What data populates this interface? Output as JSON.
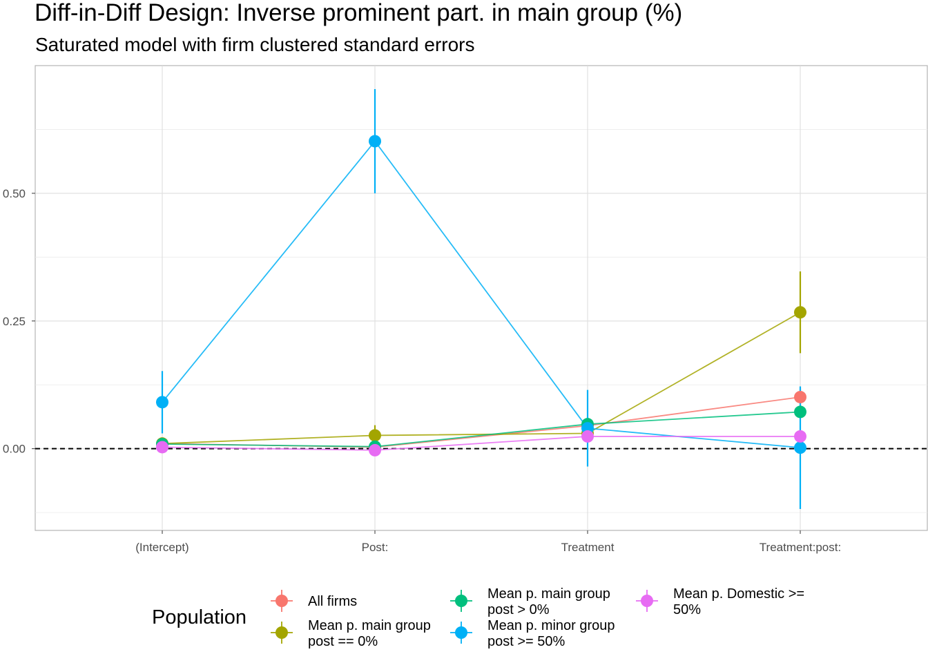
{
  "chart_data": {
    "type": "line",
    "title": "Diff-in-Diff Design: Inverse prominent part. in main group (%)",
    "subtitle": "Saturated model with firm clustered standard errors",
    "xlabel": "",
    "ylabel": "",
    "categories": [
      "(Intercept)",
      "Post:",
      "Treatment",
      "Treatment:post:"
    ],
    "ylim": [
      -0.16,
      0.75
    ],
    "y_ticks": [
      0.0,
      0.25,
      0.5
    ],
    "y_tick_labels": [
      "0.00",
      "0.25",
      "0.50"
    ],
    "grid": true,
    "reference_line": {
      "y": 0,
      "style": "dashed",
      "color": "#000000"
    },
    "legend": {
      "title": "Population",
      "position": "bottom"
    },
    "series": [
      {
        "name": "All firms",
        "color": "#F8766D",
        "values": [
          0.01,
          0.003,
          0.045,
          0.101
        ],
        "lower": [
          0.005,
          -0.002,
          0.035,
          0.085
        ],
        "upper": [
          0.015,
          0.008,
          0.055,
          0.117
        ]
      },
      {
        "name": "Mean p. main group\npost == 0%",
        "color": "#A3A500",
        "values": [
          0.01,
          0.026,
          0.03,
          0.267
        ],
        "lower": [
          0.002,
          0.006,
          0.02,
          0.187
        ],
        "upper": [
          0.018,
          0.046,
          0.04,
          0.347
        ]
      },
      {
        "name": "Mean p. main group\npost > 0%",
        "color": "#00BF7D",
        "values": [
          0.009,
          0.004,
          0.048,
          0.072
        ],
        "lower": [
          0.004,
          -0.001,
          0.04,
          0.062
        ],
        "upper": [
          0.014,
          0.009,
          0.056,
          0.082
        ]
      },
      {
        "name": "Mean p. minor group\npost >= 50%",
        "color": "#00B0F6",
        "values": [
          0.091,
          0.602,
          0.04,
          0.002
        ],
        "lower": [
          0.03,
          0.5,
          -0.035,
          -0.118
        ],
        "upper": [
          0.152,
          0.704,
          0.115,
          0.122
        ]
      },
      {
        "name": "Mean p. Domestic >=\n50%",
        "color": "#E76BF3",
        "values": [
          0.003,
          -0.003,
          0.024,
          0.024
        ],
        "lower": [
          -0.002,
          -0.008,
          0.016,
          0.016
        ],
        "upper": [
          0.008,
          0.002,
          0.032,
          0.032
        ]
      }
    ]
  }
}
